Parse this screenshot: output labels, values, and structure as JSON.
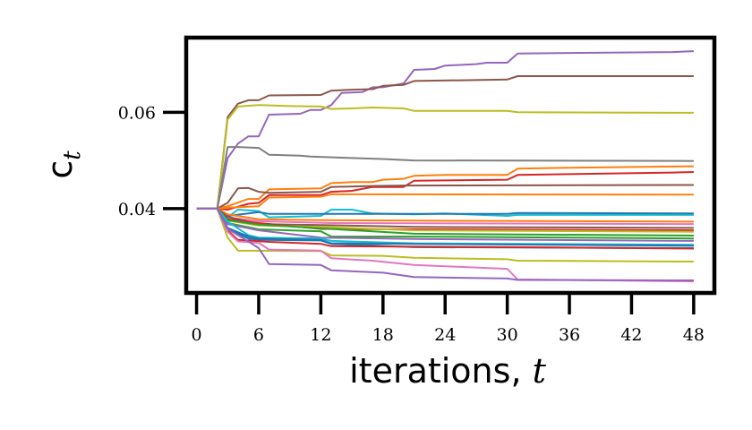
{
  "chart_data": {
    "type": "line",
    "xlabel": "iterations, t",
    "xlabel_parts": {
      "text": "iterations, ",
      "var": "t"
    },
    "ylabel": "c_t",
    "ylabel_parts": {
      "base": "c",
      "sub": "t"
    },
    "xlim": [
      -1,
      50
    ],
    "ylim": [
      0.0225,
      0.0755
    ],
    "xticks": [
      0,
      6,
      12,
      18,
      24,
      30,
      36,
      42,
      48
    ],
    "xtick_labels": [
      "0",
      "6",
      "12",
      "18",
      "24",
      "30",
      "36",
      "42",
      "48"
    ],
    "yticks": [
      0.04,
      0.06
    ],
    "ytick_labels": [
      "0.04",
      "0.06"
    ],
    "grid": false,
    "legend": "none",
    "series": [
      {
        "color": "#9467bd",
        "points": [
          [
            0,
            0.04
          ],
          [
            2,
            0.04
          ],
          [
            3,
            0.0505
          ],
          [
            4,
            0.0535
          ],
          [
            5,
            0.055
          ],
          [
            6,
            0.055
          ],
          [
            7,
            0.0595
          ],
          [
            10,
            0.0597
          ],
          [
            11,
            0.0605
          ],
          [
            12,
            0.0605
          ],
          [
            13,
            0.0615
          ],
          [
            14,
            0.064
          ],
          [
            16,
            0.0642
          ],
          [
            17,
            0.0652
          ],
          [
            18,
            0.0652
          ],
          [
            20,
            0.066
          ],
          [
            21,
            0.0688
          ],
          [
            23,
            0.069
          ],
          [
            24,
            0.0697
          ],
          [
            27,
            0.07
          ],
          [
            28,
            0.0703
          ],
          [
            30,
            0.0703
          ],
          [
            31,
            0.0722
          ],
          [
            46,
            0.0725
          ],
          [
            48,
            0.0727
          ]
        ]
      },
      {
        "color": "#8c564b",
        "points": [
          [
            0,
            0.04
          ],
          [
            2,
            0.04
          ],
          [
            3,
            0.059
          ],
          [
            4,
            0.0618
          ],
          [
            5,
            0.0625
          ],
          [
            6,
            0.0625
          ],
          [
            7,
            0.0635
          ],
          [
            12,
            0.0636
          ],
          [
            13,
            0.0645
          ],
          [
            15,
            0.0647
          ],
          [
            17,
            0.0648
          ],
          [
            18,
            0.0655
          ],
          [
            20,
            0.0657
          ],
          [
            21,
            0.0665
          ],
          [
            30,
            0.0668
          ],
          [
            31,
            0.0675
          ],
          [
            48,
            0.0675
          ]
        ]
      },
      {
        "color": "#bcbd22",
        "points": [
          [
            0,
            0.04
          ],
          [
            2,
            0.04
          ],
          [
            3,
            0.0585
          ],
          [
            4,
            0.0612
          ],
          [
            6,
            0.0615
          ],
          [
            9,
            0.0613
          ],
          [
            12,
            0.0612
          ],
          [
            13,
            0.0607
          ],
          [
            15,
            0.0608
          ],
          [
            17,
            0.061
          ],
          [
            20,
            0.0608
          ],
          [
            21,
            0.0603
          ],
          [
            30,
            0.0603
          ],
          [
            31,
            0.06
          ],
          [
            48,
            0.0599
          ]
        ]
      },
      {
        "color": "#7f7f7f",
        "points": [
          [
            0,
            0.04
          ],
          [
            2,
            0.04
          ],
          [
            3,
            0.0528
          ],
          [
            4,
            0.0528
          ],
          [
            6,
            0.0526
          ],
          [
            7,
            0.0512
          ],
          [
            10,
            0.051
          ],
          [
            11,
            0.0508
          ],
          [
            18,
            0.0503
          ],
          [
            21,
            0.05
          ],
          [
            48,
            0.0499
          ]
        ]
      },
      {
        "color": "#ff7f0e",
        "points": [
          [
            0,
            0.04
          ],
          [
            2,
            0.04
          ],
          [
            3,
            0.0405
          ],
          [
            5,
            0.042
          ],
          [
            6,
            0.042
          ],
          [
            7,
            0.044
          ],
          [
            12,
            0.0442
          ],
          [
            13,
            0.0453
          ],
          [
            15,
            0.0455
          ],
          [
            17,
            0.0455
          ],
          [
            18,
            0.046
          ],
          [
            20,
            0.0462
          ],
          [
            21,
            0.0468
          ],
          [
            24,
            0.047
          ],
          [
            30,
            0.047
          ],
          [
            31,
            0.0483
          ],
          [
            36,
            0.0485
          ],
          [
            48,
            0.0488
          ]
        ]
      },
      {
        "color": "#d62728",
        "points": [
          [
            0,
            0.04
          ],
          [
            2,
            0.04
          ],
          [
            3,
            0.0398
          ],
          [
            5,
            0.041
          ],
          [
            6,
            0.0412
          ],
          [
            7,
            0.0428
          ],
          [
            12,
            0.0428
          ],
          [
            13,
            0.0435
          ],
          [
            15,
            0.0437
          ],
          [
            17,
            0.0445
          ],
          [
            20,
            0.0445
          ],
          [
            21,
            0.0458
          ],
          [
            30,
            0.046
          ],
          [
            31,
            0.047
          ],
          [
            46,
            0.0475
          ],
          [
            48,
            0.0476
          ]
        ]
      },
      {
        "color": "#8c564b",
        "points": [
          [
            0,
            0.04
          ],
          [
            2,
            0.04
          ],
          [
            3,
            0.0412
          ],
          [
            4,
            0.0442
          ],
          [
            5,
            0.0443
          ],
          [
            6,
            0.0435
          ],
          [
            7,
            0.0433
          ],
          [
            12,
            0.0435
          ],
          [
            13,
            0.0445
          ],
          [
            17,
            0.0447
          ],
          [
            20,
            0.0448
          ],
          [
            48,
            0.0449
          ]
        ]
      },
      {
        "color": "#ff7f0e",
        "points": [
          [
            0,
            0.04
          ],
          [
            2,
            0.04
          ],
          [
            3,
            0.0402
          ],
          [
            6,
            0.0405
          ],
          [
            7,
            0.0423
          ],
          [
            12,
            0.0425
          ],
          [
            13,
            0.043
          ],
          [
            48,
            0.0429
          ]
        ]
      },
      {
        "color": "#17becf",
        "points": [
          [
            0,
            0.04
          ],
          [
            2,
            0.04
          ],
          [
            3,
            0.0382
          ],
          [
            4,
            0.0398
          ],
          [
            6,
            0.0395
          ],
          [
            7,
            0.0382
          ],
          [
            12,
            0.0385
          ],
          [
            13,
            0.0398
          ],
          [
            15,
            0.0398
          ],
          [
            17,
            0.039
          ],
          [
            21,
            0.0388
          ],
          [
            24,
            0.039
          ],
          [
            30,
            0.0385
          ],
          [
            31,
            0.0387
          ],
          [
            48,
            0.0387
          ]
        ]
      },
      {
        "color": "#1f77b4",
        "points": [
          [
            0,
            0.04
          ],
          [
            2,
            0.04
          ],
          [
            3,
            0.0385
          ],
          [
            5,
            0.039
          ],
          [
            6,
            0.0393
          ],
          [
            7,
            0.0389
          ],
          [
            30,
            0.0389
          ],
          [
            31,
            0.0391
          ],
          [
            48,
            0.039
          ]
        ]
      },
      {
        "color": "#ff7f0e",
        "points": [
          [
            0,
            0.04
          ],
          [
            2,
            0.04
          ],
          [
            3,
            0.0388
          ],
          [
            6,
            0.0378
          ],
          [
            12,
            0.0376
          ],
          [
            21,
            0.0375
          ],
          [
            48,
            0.0373
          ]
        ]
      },
      {
        "color": "#e377c2",
        "points": [
          [
            0,
            0.04
          ],
          [
            2,
            0.04
          ],
          [
            3,
            0.0382
          ],
          [
            6,
            0.0374
          ],
          [
            13,
            0.037
          ],
          [
            48,
            0.0368
          ]
        ]
      },
      {
        "color": "#8c564b",
        "points": [
          [
            0,
            0.04
          ],
          [
            2,
            0.04
          ],
          [
            3,
            0.0383
          ],
          [
            6,
            0.0368
          ],
          [
            12,
            0.0366
          ],
          [
            21,
            0.0362
          ],
          [
            48,
            0.036
          ]
        ]
      },
      {
        "color": "#d62728",
        "points": [
          [
            0,
            0.04
          ],
          [
            2,
            0.04
          ],
          [
            3,
            0.0378
          ],
          [
            6,
            0.037
          ],
          [
            12,
            0.0358
          ],
          [
            21,
            0.0357
          ],
          [
            48,
            0.0355
          ]
        ]
      },
      {
        "color": "#bcbd22",
        "points": [
          [
            0,
            0.04
          ],
          [
            2,
            0.04
          ],
          [
            3,
            0.0375
          ],
          [
            6,
            0.0365
          ],
          [
            12,
            0.0362
          ],
          [
            21,
            0.0355
          ],
          [
            48,
            0.0352
          ]
        ]
      },
      {
        "color": "#2ca02c",
        "points": [
          [
            0,
            0.04
          ],
          [
            2,
            0.04
          ],
          [
            3,
            0.0376
          ],
          [
            6,
            0.0367
          ],
          [
            12,
            0.0359
          ],
          [
            21,
            0.0348
          ],
          [
            48,
            0.0344
          ]
        ]
      },
      {
        "color": "#2ca02c",
        "points": [
          [
            0,
            0.04
          ],
          [
            2,
            0.04
          ],
          [
            3,
            0.037
          ],
          [
            6,
            0.0357
          ],
          [
            12,
            0.0353
          ],
          [
            13,
            0.0342
          ],
          [
            21,
            0.0342
          ],
          [
            48,
            0.0338
          ]
        ]
      },
      {
        "color": "#9467bd",
        "points": [
          [
            0,
            0.04
          ],
          [
            2,
            0.04
          ],
          [
            3,
            0.0368
          ],
          [
            6,
            0.0355
          ],
          [
            12,
            0.034
          ],
          [
            21,
            0.0337
          ],
          [
            48,
            0.0333
          ]
        ]
      },
      {
        "color": "#17becf",
        "points": [
          [
            0,
            0.04
          ],
          [
            2,
            0.04
          ],
          [
            3,
            0.0373
          ],
          [
            5,
            0.0345
          ],
          [
            6,
            0.034
          ],
          [
            12,
            0.0338
          ],
          [
            13,
            0.0333
          ],
          [
            21,
            0.0328
          ],
          [
            48,
            0.0325
          ]
        ]
      },
      {
        "color": "#1f77b4",
        "points": [
          [
            0,
            0.04
          ],
          [
            2,
            0.04
          ],
          [
            3,
            0.036
          ],
          [
            5,
            0.0342
          ],
          [
            6,
            0.0338
          ],
          [
            12,
            0.0335
          ],
          [
            13,
            0.0328
          ],
          [
            21,
            0.0327
          ],
          [
            48,
            0.0323
          ]
        ]
      },
      {
        "color": "#1f77b4",
        "points": [
          [
            0,
            0.04
          ],
          [
            2,
            0.04
          ],
          [
            3,
            0.0358
          ],
          [
            5,
            0.0338
          ],
          [
            6,
            0.0335
          ],
          [
            12,
            0.0334
          ],
          [
            13,
            0.0327
          ],
          [
            21,
            0.032
          ],
          [
            48,
            0.0318
          ]
        ]
      },
      {
        "color": "#d62728",
        "points": [
          [
            0,
            0.04
          ],
          [
            2,
            0.04
          ],
          [
            3,
            0.0355
          ],
          [
            4,
            0.0335
          ],
          [
            7,
            0.0331
          ],
          [
            12,
            0.0327
          ],
          [
            13,
            0.0322
          ],
          [
            30,
            0.032
          ],
          [
            48,
            0.0317
          ]
        ]
      },
      {
        "color": "#bcbd22",
        "points": [
          [
            0,
            0.04
          ],
          [
            2,
            0.04
          ],
          [
            3,
            0.034
          ],
          [
            4,
            0.0313
          ],
          [
            12,
            0.0312
          ],
          [
            13,
            0.0303
          ],
          [
            18,
            0.0302
          ],
          [
            21,
            0.0298
          ],
          [
            30,
            0.0295
          ],
          [
            31,
            0.0292
          ],
          [
            48,
            0.029
          ]
        ]
      },
      {
        "color": "#e377c2",
        "points": [
          [
            0,
            0.04
          ],
          [
            2,
            0.04
          ],
          [
            3,
            0.0352
          ],
          [
            4,
            0.0332
          ],
          [
            6,
            0.0329
          ],
          [
            7,
            0.0315
          ],
          [
            12,
            0.0313
          ],
          [
            13,
            0.0297
          ],
          [
            17,
            0.0292
          ],
          [
            21,
            0.0283
          ],
          [
            30,
            0.0275
          ],
          [
            31,
            0.0253
          ],
          [
            48,
            0.0249
          ]
        ]
      },
      {
        "color": "#9467bd",
        "points": [
          [
            0,
            0.04
          ],
          [
            2,
            0.04
          ],
          [
            3,
            0.0358
          ],
          [
            5,
            0.0332
          ],
          [
            6,
            0.0318
          ],
          [
            7,
            0.0285
          ],
          [
            12,
            0.0283
          ],
          [
            13,
            0.0272
          ],
          [
            18,
            0.0267
          ],
          [
            21,
            0.0258
          ],
          [
            30,
            0.0255
          ],
          [
            31,
            0.0252
          ],
          [
            48,
            0.0251
          ]
        ]
      }
    ]
  }
}
